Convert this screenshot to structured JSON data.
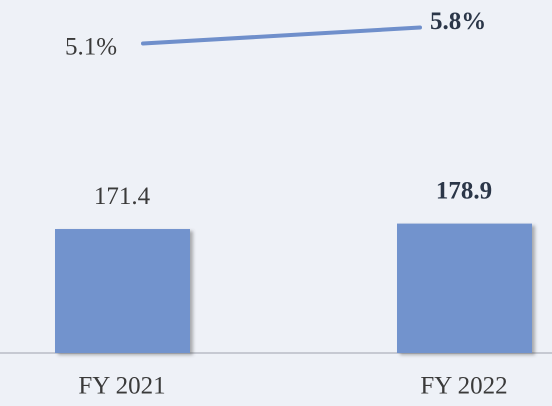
{
  "chart_data": {
    "type": "bar",
    "categories": [
      "FY 2021",
      "FY 2022"
    ],
    "series": [
      {
        "type": "bar",
        "color": "#7293cd",
        "values": [
          171.4,
          178.9
        ]
      },
      {
        "type": "line",
        "axis": "y2",
        "color": "#6f8fcb",
        "values": [
          5.1,
          5.8
        ],
        "value_labels": [
          "5.1%",
          "5.8%"
        ]
      }
    ],
    "ylim": [
      0,
      488
    ],
    "y2lim": [
      -8.4,
      7.0
    ]
  }
}
